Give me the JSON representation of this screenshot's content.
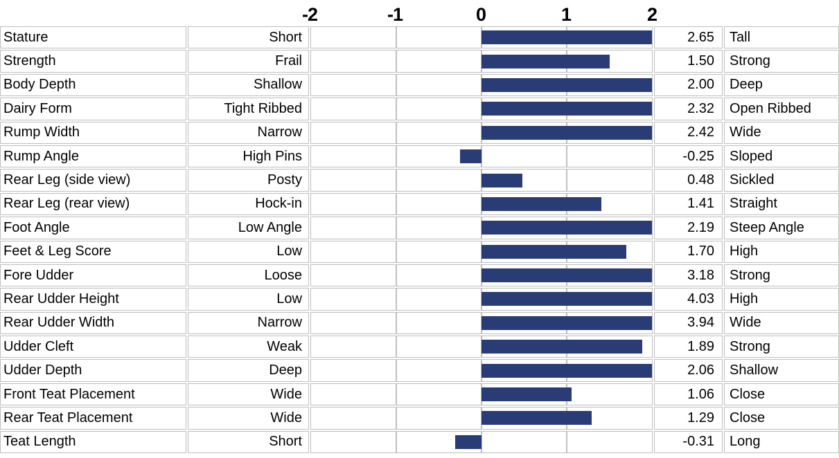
{
  "chart_data": {
    "type": "bar",
    "orientation": "horizontal",
    "title": "",
    "xlabel": "",
    "ylabel": "",
    "axis": {
      "min": -2,
      "max": 2,
      "ticks": [
        "-2",
        "-1",
        "0",
        "1",
        "2"
      ],
      "gridlines_at": [
        -1,
        0,
        1
      ],
      "bars_clipped_at": 2
    },
    "colors": {
      "bar": "#293c76",
      "gridline": "#c0c0c0",
      "cell_border": "#bdbdbd",
      "text": "#000000",
      "background": "#ffffff"
    },
    "rows": [
      {
        "trait": "Stature",
        "low": "Short",
        "value": 2.65,
        "high": "Tall"
      },
      {
        "trait": "Strength",
        "low": "Frail",
        "value": 1.5,
        "high": "Strong"
      },
      {
        "trait": "Body Depth",
        "low": "Shallow",
        "value": 2.0,
        "high": "Deep"
      },
      {
        "trait": "Dairy Form",
        "low": "Tight Ribbed",
        "value": 2.32,
        "high": "Open Ribbed"
      },
      {
        "trait": "Rump Width",
        "low": "Narrow",
        "value": 2.42,
        "high": "Wide"
      },
      {
        "trait": "Rump Angle",
        "low": "High Pins",
        "value": -0.25,
        "high": "Sloped"
      },
      {
        "trait": "Rear Leg (side view)",
        "low": "Posty",
        "value": 0.48,
        "high": "Sickled"
      },
      {
        "trait": "Rear Leg (rear view)",
        "low": "Hock-in",
        "value": 1.41,
        "high": "Straight"
      },
      {
        "trait": "Foot Angle",
        "low": "Low Angle",
        "value": 2.19,
        "high": "Steep Angle"
      },
      {
        "trait": "Feet & Leg Score",
        "low": "Low",
        "value": 1.7,
        "high": "High"
      },
      {
        "trait": "Fore Udder",
        "low": "Loose",
        "value": 3.18,
        "high": "Strong"
      },
      {
        "trait": "Rear Udder Height",
        "low": "Low",
        "value": 4.03,
        "high": "High"
      },
      {
        "trait": "Rear Udder Width",
        "low": "Narrow",
        "value": 3.94,
        "high": "Wide"
      },
      {
        "trait": "Udder Cleft",
        "low": "Weak",
        "value": 1.89,
        "high": "Strong"
      },
      {
        "trait": "Udder Depth",
        "low": "Deep",
        "value": 2.06,
        "high": "Shallow"
      },
      {
        "trait": "Front Teat Placement",
        "low": "Wide",
        "value": 1.06,
        "high": "Close"
      },
      {
        "trait": "Rear Teat Placement",
        "low": "Wide",
        "value": 1.29,
        "high": "Close"
      },
      {
        "trait": "Teat Length",
        "low": "Short",
        "value": -0.31,
        "high": "Long"
      }
    ]
  }
}
